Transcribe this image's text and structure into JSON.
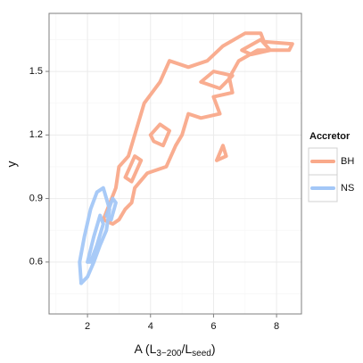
{
  "chart_data": {
    "type": "line",
    "x_label": [
      {
        "text": "A (L"
      },
      {
        "text": "3−200",
        "sub": true
      },
      {
        "text": "/L"
      },
      {
        "text": "seed",
        "sub": true
      },
      {
        "text": ")"
      }
    ],
    "y_label": "y",
    "legend_title": "Accretor",
    "legend": "right",
    "grid": true,
    "xlim": [
      0.78,
      8.79
    ],
    "ylim": [
      0.355,
      1.774
    ],
    "xticks": [
      2,
      4,
      6,
      8
    ],
    "yticks": [
      0.6,
      0.9,
      1.2,
      1.5
    ],
    "minor_xticks": [
      1,
      3,
      5,
      7
    ],
    "minor_yticks": [
      0.45,
      0.75,
      1.05,
      1.35,
      1.65
    ],
    "series": [
      {
        "name": "BH",
        "color": "#f9a98a",
        "x": [
          2.5,
          2.9,
          3.0,
          3.3,
          3.6,
          3.8,
          4.3,
          4.6,
          5.2,
          5.8,
          6.3,
          7.0,
          7.5,
          7.6,
          8.5,
          8.4,
          7.4,
          6.8,
          6.5,
          6.6,
          6.0,
          6.2,
          5.6,
          5.2,
          5.0,
          4.8,
          4.5,
          3.9,
          3.5,
          3.4,
          3.2,
          3.0,
          2.8,
          2.5,
          null,
          4.0,
          4.3,
          4.6,
          4.4,
          4.1,
          4.0,
          null,
          5.6,
          6.0,
          6.6,
          6.2,
          5.6,
          null,
          6.9,
          7.5,
          7.8,
          7.2,
          6.9,
          null,
          3.2,
          3.5,
          3.7,
          3.4,
          3.2,
          null,
          6.1,
          6.3,
          6.4,
          6.1
        ],
        "values": [
          0.8,
          0.95,
          1.05,
          1.1,
          1.25,
          1.35,
          1.45,
          1.55,
          1.52,
          1.55,
          1.62,
          1.68,
          1.68,
          1.64,
          1.63,
          1.6,
          1.6,
          1.55,
          1.47,
          1.4,
          1.38,
          1.3,
          1.28,
          1.3,
          1.2,
          1.15,
          1.05,
          1.02,
          0.95,
          0.88,
          0.85,
          0.8,
          0.78,
          0.8,
          null,
          1.2,
          1.25,
          1.22,
          1.15,
          1.17,
          1.2,
          null,
          1.45,
          1.5,
          1.48,
          1.42,
          1.45,
          null,
          1.6,
          1.65,
          1.6,
          1.58,
          1.6,
          null,
          1.0,
          1.1,
          1.08,
          0.98,
          1.0,
          null,
          1.08,
          1.15,
          1.1,
          1.08
        ]
      },
      {
        "name": "NS",
        "color": "#a3c7f7",
        "x": [
          1.8,
          1.75,
          1.9,
          2.1,
          2.3,
          2.5,
          2.6,
          2.7,
          2.6,
          2.4,
          2.2,
          2.0,
          1.8,
          null,
          2.0,
          2.2,
          2.4,
          2.5,
          2.3,
          2.1,
          2.0,
          null,
          2.6,
          2.8,
          2.9,
          2.75,
          2.6
        ],
        "values": [
          0.5,
          0.6,
          0.72,
          0.85,
          0.93,
          0.95,
          0.9,
          0.85,
          0.75,
          0.68,
          0.6,
          0.53,
          0.5,
          null,
          0.6,
          0.72,
          0.82,
          0.78,
          0.68,
          0.6,
          0.6,
          null,
          0.82,
          0.9,
          0.88,
          0.8,
          0.82
        ]
      }
    ]
  }
}
